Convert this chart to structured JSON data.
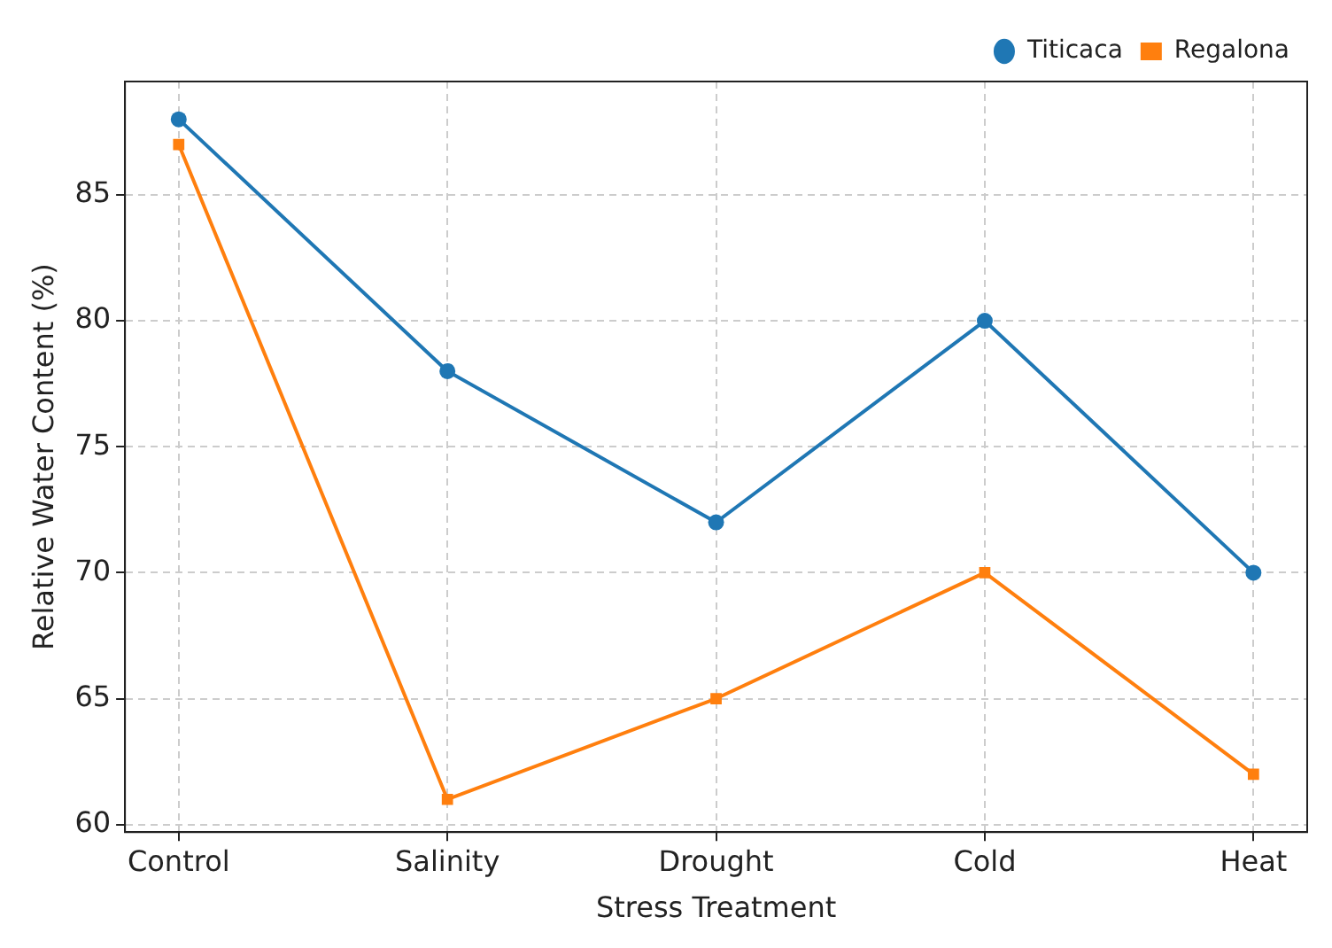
{
  "chart_data": {
    "type": "line",
    "xlabel": "Stress Treatment",
    "ylabel": "Relative Water Content (%)",
    "categories": [
      "Control",
      "Salinity",
      "Drought",
      "Cold",
      "Heat"
    ],
    "series": [
      {
        "name": "Titicaca",
        "color": "#1f77b4",
        "marker": "circle",
        "values": [
          88,
          78,
          72,
          80,
          70
        ]
      },
      {
        "name": "Regalona",
        "color": "#ff7f0e",
        "marker": "square",
        "values": [
          87,
          61,
          65,
          70,
          62
        ]
      }
    ],
    "ylim": [
      59.7,
      89.5
    ],
    "yticks": [
      60,
      65,
      70,
      75,
      80,
      85
    ],
    "grid": true,
    "legend": "top right",
    "line_style": "solid"
  }
}
